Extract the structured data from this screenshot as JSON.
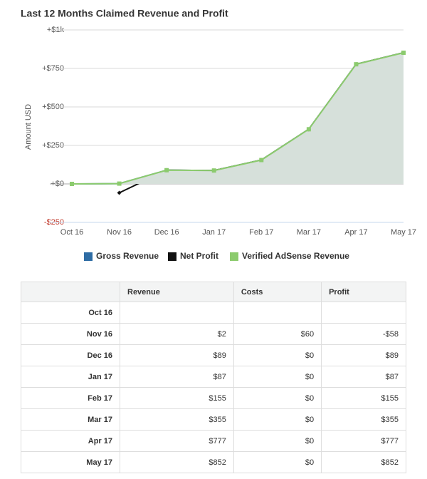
{
  "chart_data": {
    "type": "line",
    "title": "Last 12 Months Claimed Revenue and Profit",
    "ylabel": "Amount USD",
    "categories": [
      "Oct 16",
      "Nov 16",
      "Dec 16",
      "Jan 17",
      "Feb 17",
      "Mar 17",
      "Apr 17",
      "May 17"
    ],
    "series": [
      {
        "name": "Gross Revenue",
        "color": "#2e6ca4",
        "values": [
          0,
          2,
          89,
          87,
          155,
          355,
          777,
          852
        ]
      },
      {
        "name": "Net Profit",
        "color": "#111111",
        "values": [
          null,
          -58,
          89,
          87,
          155,
          355,
          777,
          852
        ]
      },
      {
        "name": "Verified AdSense Revenue",
        "color": "#8ccb6e",
        "area_color": "#d6e0da",
        "values": [
          0,
          2,
          89,
          87,
          155,
          355,
          777,
          852
        ]
      }
    ],
    "ylim": [
      -250,
      1000
    ],
    "yticks": [
      {
        "value": -250,
        "label": "-$250"
      },
      {
        "value": 0,
        "label": "+$0"
      },
      {
        "value": 250,
        "label": "+$250"
      },
      {
        "value": 500,
        "label": "+$500"
      },
      {
        "value": 750,
        "label": "+$750"
      },
      {
        "value": 1000,
        "label": "+$1k"
      }
    ],
    "grid": true
  },
  "table": {
    "header": [
      "Revenue",
      "Costs",
      "Profit"
    ],
    "rows": [
      [
        "Oct 16"
      ],
      [
        "Nov 16",
        "$2",
        "$60",
        "-$58"
      ],
      [
        "Dec 16",
        "$89",
        "$0",
        "$89"
      ],
      [
        "Jan 17",
        "$87",
        "$0",
        "$87"
      ],
      [
        "Feb 17",
        "$155",
        "$0",
        "$155"
      ],
      [
        "Mar 17",
        "$355",
        "$0",
        "$355"
      ],
      [
        "Apr 17",
        "$777",
        "$0",
        "$777"
      ],
      [
        "May 17",
        "$852",
        "$0",
        "$852"
      ]
    ]
  }
}
